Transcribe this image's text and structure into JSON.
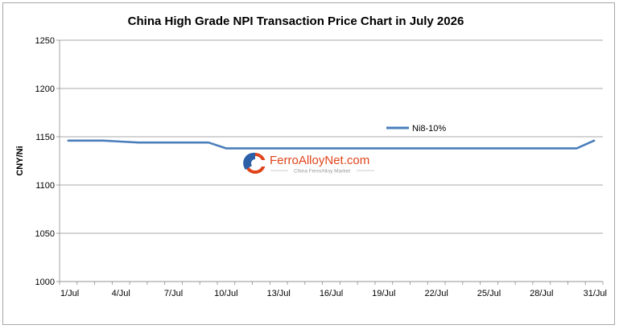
{
  "chart_data": {
    "type": "line",
    "title": "China High Grade NPI Transaction Price Chart in July 2026",
    "ylabel": "CNY/Ni",
    "xlabel": "",
    "ylim": [
      1000,
      1250
    ],
    "yticks": [
      1000,
      1050,
      1100,
      1150,
      1200,
      1250
    ],
    "grid": true,
    "legend_position": "top-right-inside",
    "x": [
      "1/Jul",
      "2/Jul",
      "3/Jul",
      "4/Jul",
      "5/Jul",
      "6/Jul",
      "7/Jul",
      "8/Jul",
      "9/Jul",
      "10/Jul",
      "11/Jul",
      "12/Jul",
      "13/Jul",
      "14/Jul",
      "15/Jul",
      "16/Jul",
      "17/Jul",
      "18/Jul",
      "19/Jul",
      "20/Jul",
      "21/Jul",
      "22/Jul",
      "23/Jul",
      "24/Jul",
      "25/Jul",
      "26/Jul",
      "27/Jul",
      "28/Jul",
      "29/Jul",
      "30/Jul",
      "31/Jul"
    ],
    "xtick_labels": [
      "1/Jul",
      "4/Jul",
      "7/Jul",
      "10/Jul",
      "13/Jul",
      "16/Jul",
      "19/Jul",
      "22/Jul",
      "25/Jul",
      "28/Jul",
      "31/Jul"
    ],
    "series": [
      {
        "name": "Ni8-10%",
        "color": "#4a7ebb",
        "values": [
          1146,
          1146,
          1146,
          1145,
          1144,
          1144,
          1144,
          1144,
          1144,
          1138,
          1138,
          1138,
          1138,
          1138,
          1138,
          1138,
          1138,
          1138,
          1138,
          1138,
          1138,
          1138,
          1138,
          1138,
          1138,
          1138,
          1138,
          1138,
          1138,
          1138,
          1146
        ]
      }
    ]
  },
  "watermark": {
    "brand": "FerroAlloyNet.com",
    "tagline": "China FerroAlloy Market",
    "logo_colors": [
      "#e0441b",
      "#2d5fa7"
    ]
  }
}
